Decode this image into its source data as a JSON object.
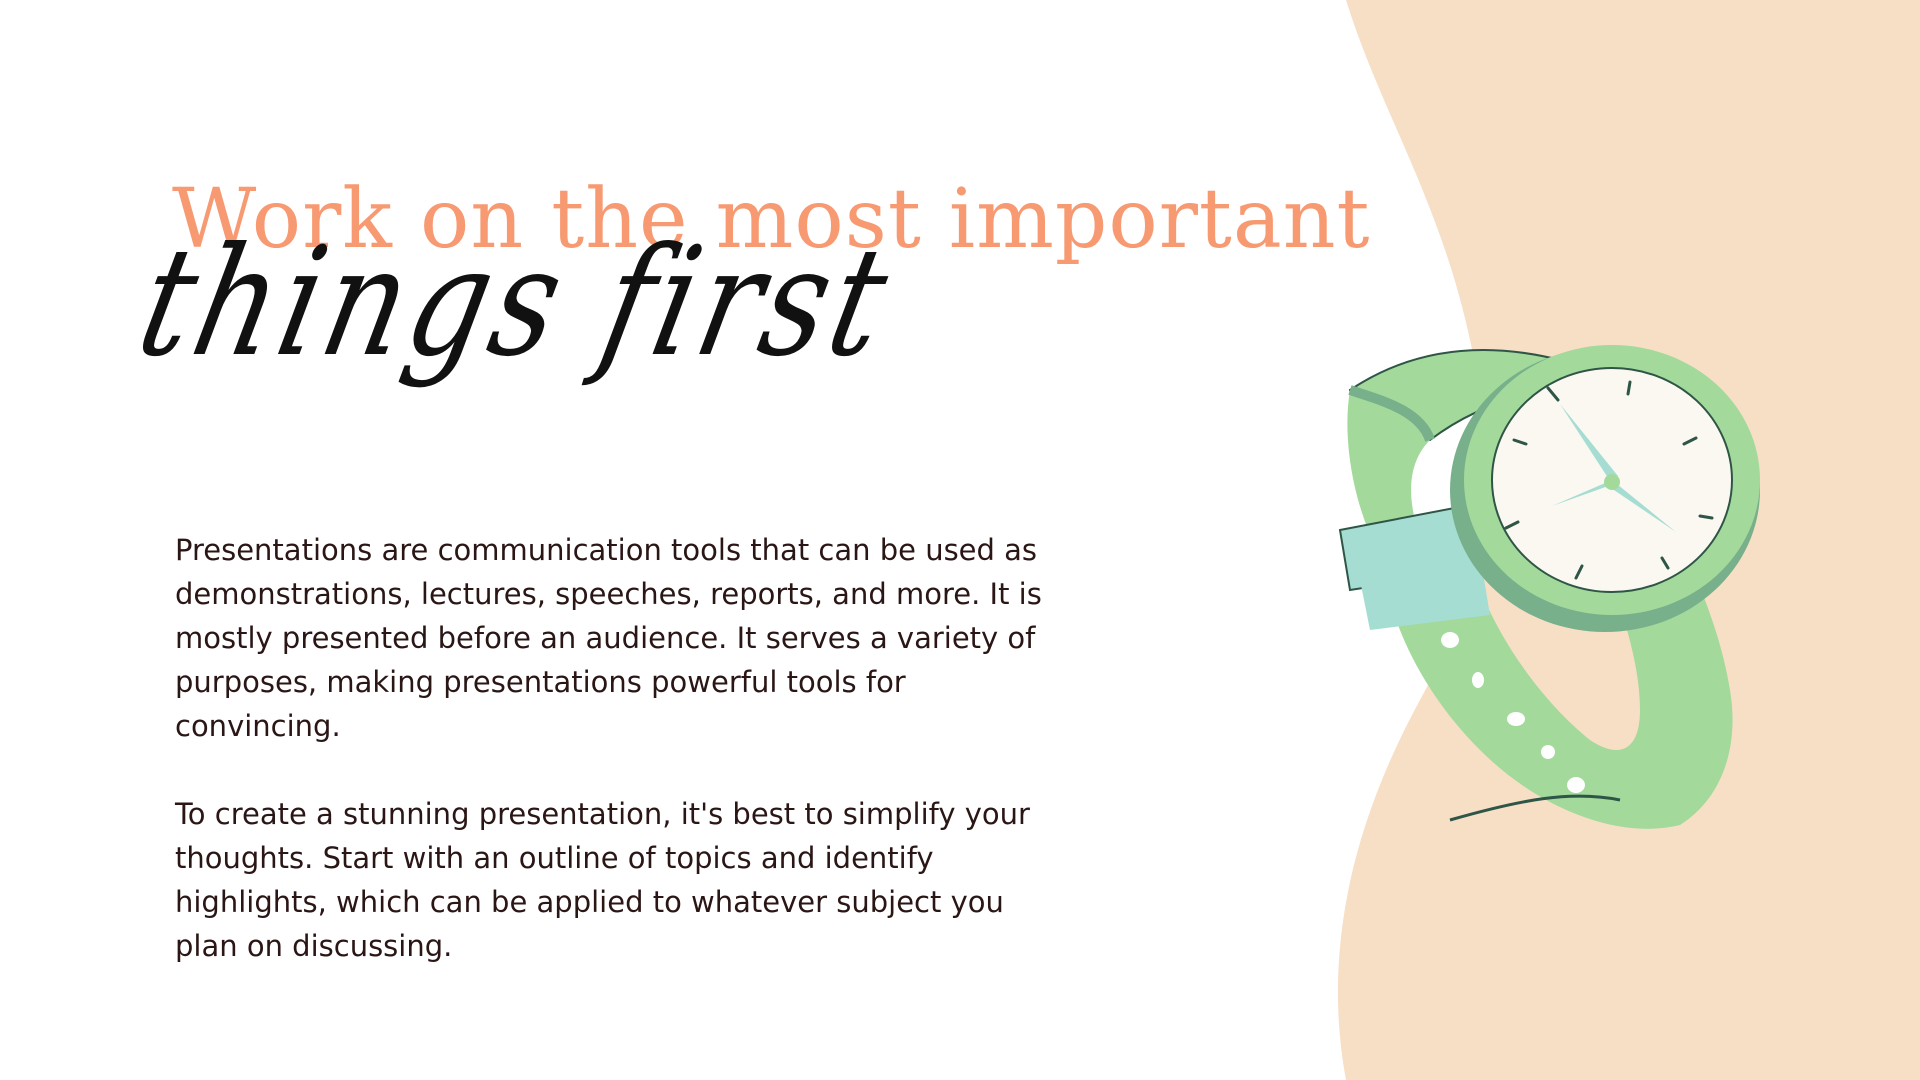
{
  "slide": {
    "title": "Work on the most important",
    "script_title": "things first",
    "paragraphs": [
      "Presentations are communication tools that can be used as demonstrations, lectures, speeches, reports, and more. It is mostly presented before an audience. It serves a variety of purposes, making presentations powerful tools for convincing.",
      "To create a stunning presentation, it's best to simplify your thoughts. Start with an outline of topics and identify highlights, which can be applied to whatever subject you plan on discussing."
    ]
  },
  "colors": {
    "title": "#F79A72",
    "script": "#111111",
    "body": "#2B1616",
    "background_shape": "#F7DFC6",
    "watch_band": "#A3D99B",
    "watch_dark": "#77B08A",
    "watch_face": "#FBF8F2",
    "watch_hands": "#A5DDD2",
    "watch_outline": "#2E5546"
  },
  "illustration": {
    "icon": "wristwatch-icon"
  }
}
